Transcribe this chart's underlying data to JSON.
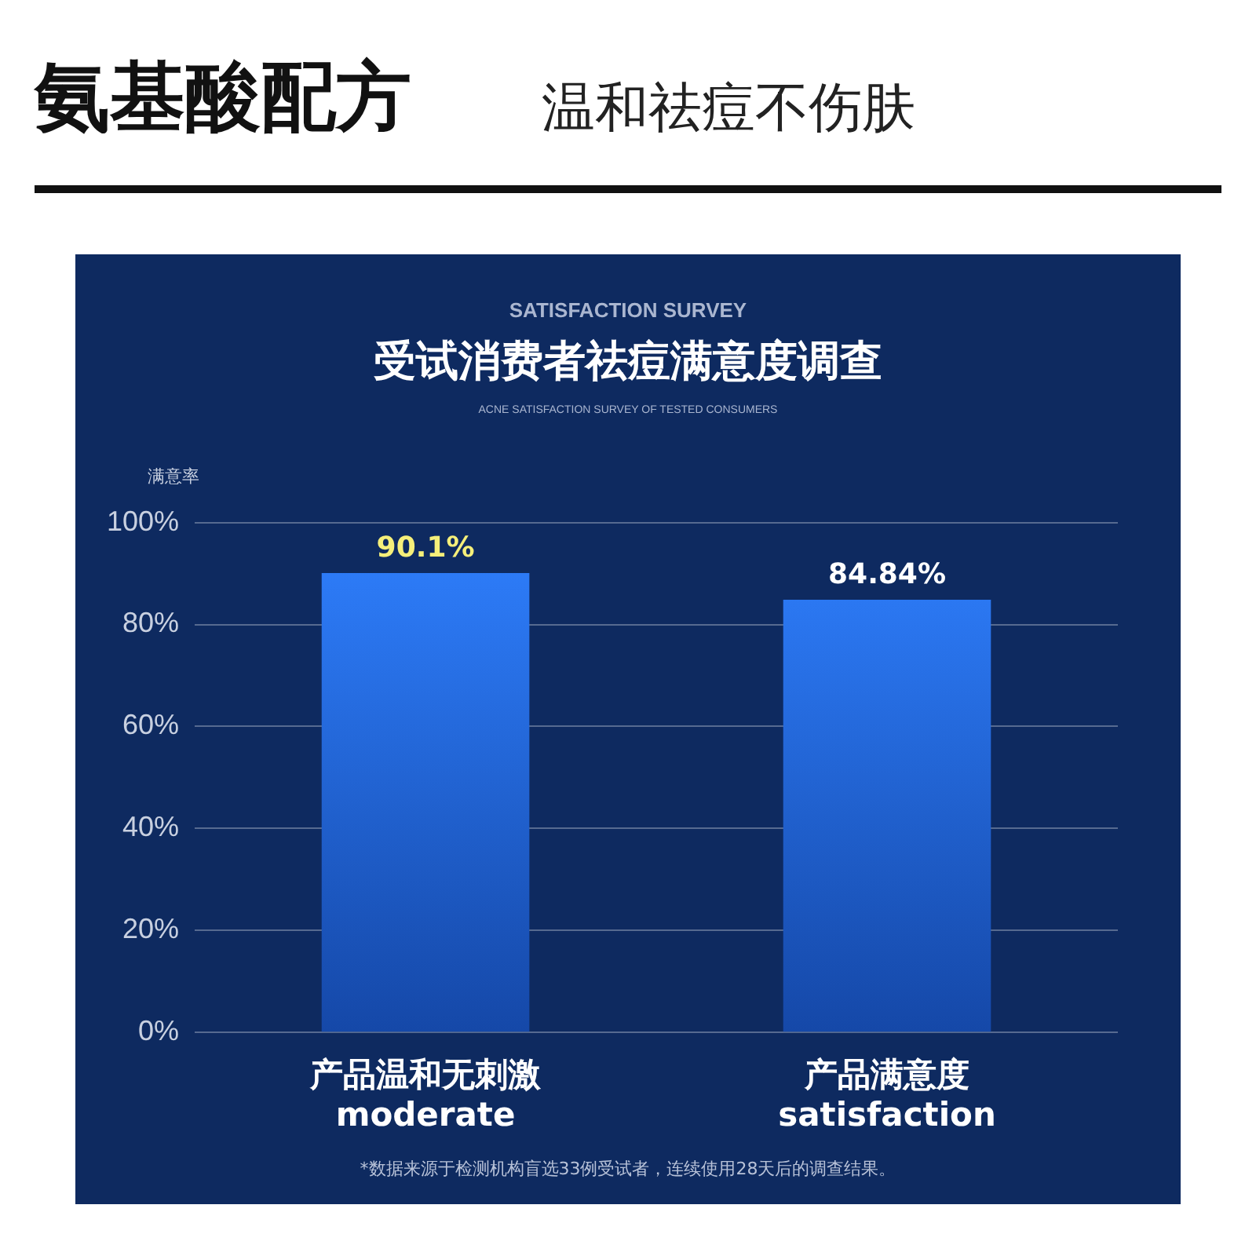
{
  "chart_data": {
    "type": "bar",
    "title": "受试消费者祛痘满意度调查",
    "subtitle": "ACNE SATISFACTION SURVEY OF TESTED CONSUMERS",
    "annotations": [
      "氨基酸配方",
      "温和祛痘不伤肤",
      "SATISFACTION SURVEY",
      "*数据来源于检测机构盲选33例受试者，连续使用28天后的调查结果。"
    ],
    "ylabel": "满意率",
    "categories": [
      "产品温和无刺激\nmoderate",
      "产品满意度\nsatisfaction"
    ],
    "values": [
      90.1,
      84.84
    ],
    "color": "#2f80ff",
    "value_labels": [
      "90.1%",
      "84.84%"
    ],
    "ylim": [
      0,
      100
    ],
    "yticks": [
      {
        "value": 0,
        "label": "0%"
      },
      {
        "value": 20,
        "label": "20%"
      },
      {
        "value": 40,
        "label": "40%"
      },
      {
        "value": 60,
        "label": "60%"
      },
      {
        "value": 80,
        "label": "80%"
      },
      {
        "value": 100,
        "label": "100%"
      }
    ],
    "grid": "y",
    "legend": false
  }
}
